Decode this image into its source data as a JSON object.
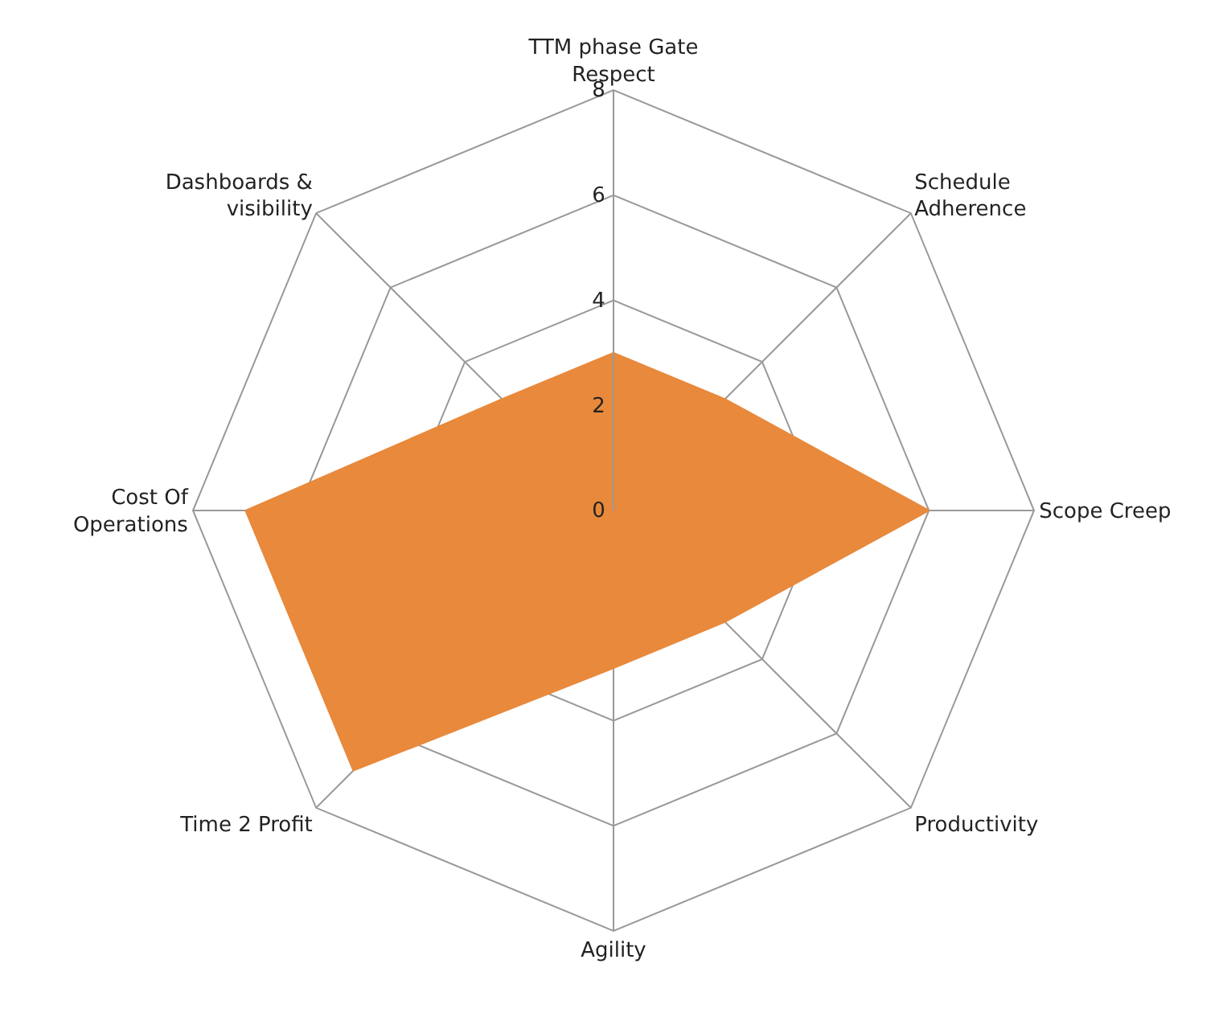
{
  "chart_data": {
    "type": "radar",
    "categories": [
      "TTM phase Gate\nRespect",
      "Schedule\nAdherence",
      "Scope Creep",
      "Productivity",
      "Agility",
      "Time 2 Profit",
      "Cost Of\nOperations",
      "Dashboards &\nvisibility"
    ],
    "series": [
      {
        "color": "#e8893c",
        "values": [
          3,
          3,
          6,
          3,
          3,
          7,
          7,
          3
        ]
      }
    ],
    "ylim": [
      0,
      8
    ],
    "yticks": [
      0,
      2,
      4,
      6,
      8
    ],
    "grid": true,
    "marker": "none"
  }
}
